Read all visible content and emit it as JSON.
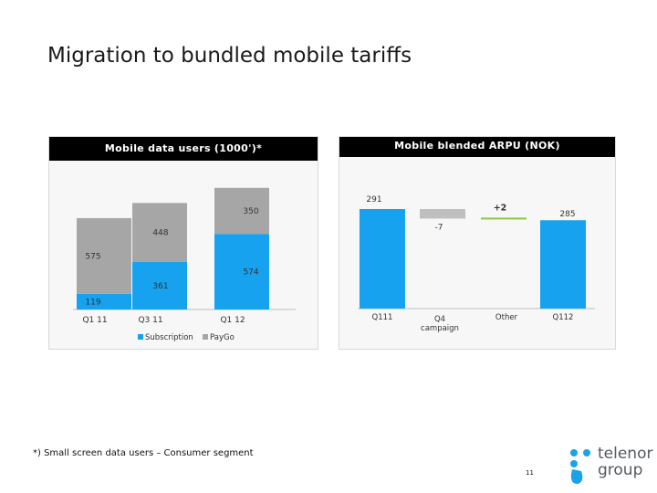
{
  "title": "Migration to bundled mobile tariffs",
  "footnote": "*) Small screen data users – Consumer segment",
  "page_number": "11",
  "logo": {
    "line1": "telenor",
    "line2": "group"
  },
  "colors": {
    "subscription": "#16a2ee",
    "paygo": "#a6a6a6",
    "positive": "#8dc63f",
    "negative": "#bfbfbf",
    "header": "#000000"
  },
  "chart_data": [
    {
      "type": "bar",
      "stacked": true,
      "title": "Mobile data users (1000')*",
      "categories": [
        "Q1 11",
        "Q3 11",
        "Q1 12"
      ],
      "series": [
        {
          "name": "Subscription",
          "values": [
            119,
            361,
            574
          ]
        },
        {
          "name": "PayGo",
          "values": [
            575,
            448,
            350
          ]
        }
      ],
      "legend": [
        "Subscription",
        "PayGo"
      ],
      "legend_position": "bottom",
      "ylim": [
        0,
        950
      ]
    },
    {
      "type": "waterfall",
      "title": "Mobile blended ARPU (NOK)",
      "categories": [
        "Q111",
        "Q4\ncampaign",
        "Other",
        "Q112"
      ],
      "values": [
        291,
        -7,
        2,
        285
      ],
      "labels": [
        "291",
        "-7",
        "+2",
        "285"
      ],
      "measures": [
        "total",
        "relative",
        "relative",
        "total"
      ],
      "ylim": [
        0,
        310
      ]
    }
  ]
}
